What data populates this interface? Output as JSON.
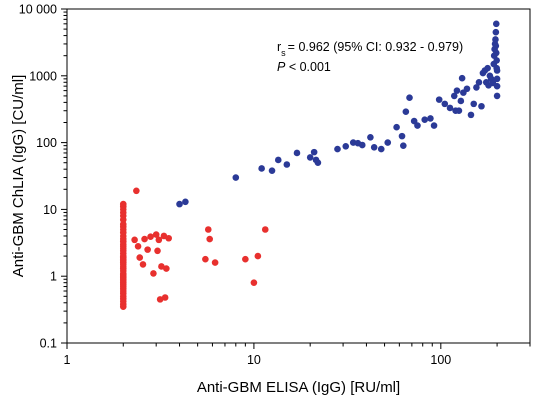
{
  "chart_data": {
    "type": "scatter",
    "title": "",
    "xlabel": "Anti-GBM ELISA (IgG) [RU/ml]",
    "ylabel": "Anti-GBM ChLIA (IgG) [CU/ml]",
    "xscale": "log",
    "yscale": "log",
    "xlim": [
      1,
      300
    ],
    "ylim": [
      0.1,
      10000
    ],
    "x_ticks": [
      1,
      10,
      100
    ],
    "x_tick_labels": [
      "1",
      "10",
      "100"
    ],
    "y_ticks": [
      0.1,
      1,
      10,
      100,
      1000,
      10000
    ],
    "y_tick_labels": [
      "0.1",
      "1",
      "10",
      "100",
      "1000",
      "10 000"
    ],
    "grid": false,
    "legend": "none",
    "annotation": {
      "stat_symbol": "r",
      "stat_subscript": "s",
      "stat_text": "= 0.962 (95% CI: 0.932 - 0.979)",
      "p_symbol": "P",
      "p_text": " < 0.001"
    },
    "series": [
      {
        "color": "#e8302e",
        "points": [
          [
            2,
            0.35
          ],
          [
            2,
            0.38
          ],
          [
            2,
            0.42
          ],
          [
            2,
            0.46
          ],
          [
            2,
            0.5
          ],
          [
            2,
            0.55
          ],
          [
            2,
            0.6
          ],
          [
            2,
            0.65
          ],
          [
            2,
            0.7
          ],
          [
            2,
            0.75
          ],
          [
            2,
            0.8
          ],
          [
            2,
            0.85
          ],
          [
            2,
            0.9
          ],
          [
            2,
            0.95
          ],
          [
            2,
            1.0
          ],
          [
            2,
            1.05
          ],
          [
            2,
            1.1
          ],
          [
            2,
            1.2
          ],
          [
            2,
            1.3
          ],
          [
            2,
            1.4
          ],
          [
            2,
            1.5
          ],
          [
            2,
            1.6
          ],
          [
            2,
            1.7
          ],
          [
            2,
            1.8
          ],
          [
            2,
            1.9
          ],
          [
            2,
            2.0
          ],
          [
            2,
            2.2
          ],
          [
            2,
            2.4
          ],
          [
            2,
            2.6
          ],
          [
            2,
            2.8
          ],
          [
            2,
            3.0
          ],
          [
            2,
            3.3
          ],
          [
            2,
            3.6
          ],
          [
            2,
            4.0
          ],
          [
            2,
            4.5
          ],
          [
            2,
            5.0
          ],
          [
            2,
            5.5
          ],
          [
            2,
            6.0
          ],
          [
            2,
            7.0
          ],
          [
            2,
            8.0
          ],
          [
            2,
            9.0
          ],
          [
            2,
            10.0
          ],
          [
            2,
            11.0
          ],
          [
            2,
            12.0
          ],
          [
            2.35,
            19
          ],
          [
            2.3,
            3.5
          ],
          [
            2.4,
            2.8
          ],
          [
            2.45,
            1.9
          ],
          [
            2.55,
            1.5
          ],
          [
            2.6,
            3.6
          ],
          [
            2.7,
            2.5
          ],
          [
            2.8,
            3.9
          ],
          [
            2.9,
            1.1
          ],
          [
            3.0,
            4.2
          ],
          [
            3.05,
            2.4
          ],
          [
            3.1,
            3.5
          ],
          [
            3.15,
            0.45
          ],
          [
            3.2,
            1.4
          ],
          [
            3.3,
            4.0
          ],
          [
            3.35,
            0.48
          ],
          [
            3.4,
            1.3
          ],
          [
            3.5,
            3.7
          ],
          [
            5.5,
            1.8
          ],
          [
            5.7,
            5.0
          ],
          [
            5.8,
            3.6
          ],
          [
            6.2,
            1.6
          ],
          [
            9.0,
            1.8
          ],
          [
            10.0,
            0.8
          ],
          [
            10.5,
            2.0
          ],
          [
            11.5,
            5.0
          ]
        ]
      },
      {
        "color": "#2b3a97",
        "points": [
          [
            4.0,
            12
          ],
          [
            4.3,
            13
          ],
          [
            8.0,
            30
          ],
          [
            11.0,
            41
          ],
          [
            12.5,
            38
          ],
          [
            13.5,
            55
          ],
          [
            15.0,
            47
          ],
          [
            17.0,
            70
          ],
          [
            20.0,
            60
          ],
          [
            21.0,
            72
          ],
          [
            21.5,
            55
          ],
          [
            22.0,
            50
          ],
          [
            28,
            80
          ],
          [
            31,
            88
          ],
          [
            34,
            100
          ],
          [
            36,
            98
          ],
          [
            38,
            92
          ],
          [
            42,
            120
          ],
          [
            44,
            85
          ],
          [
            48,
            80
          ],
          [
            52,
            100
          ],
          [
            58,
            170
          ],
          [
            62,
            125
          ],
          [
            63,
            90
          ],
          [
            65,
            290
          ],
          [
            68,
            470
          ],
          [
            72,
            210
          ],
          [
            75,
            180
          ],
          [
            82,
            220
          ],
          [
            88,
            230
          ],
          [
            92,
            180
          ],
          [
            98,
            440
          ],
          [
            105,
            380
          ],
          [
            112,
            330
          ],
          [
            118,
            500
          ],
          [
            120,
            300
          ],
          [
            122,
            600
          ],
          [
            125,
            300
          ],
          [
            128,
            420
          ],
          [
            130,
            920
          ],
          [
            132,
            560
          ],
          [
            138,
            640
          ],
          [
            145,
            260
          ],
          [
            150,
            380
          ],
          [
            155,
            670
          ],
          [
            160,
            800
          ],
          [
            165,
            350
          ],
          [
            168,
            1100
          ],
          [
            172,
            1200
          ],
          [
            175,
            800
          ],
          [
            178,
            1300
          ],
          [
            180,
            720
          ],
          [
            183,
            1000
          ],
          [
            186,
            900
          ],
          [
            190,
            780
          ],
          [
            192,
            1500
          ],
          [
            193,
            2000
          ],
          [
            194,
            2500
          ],
          [
            195,
            3000
          ],
          [
            196,
            3500
          ],
          [
            197,
            4500
          ],
          [
            198,
            6000
          ],
          [
            199,
            1700
          ],
          [
            200,
            1200
          ],
          [
            200,
            900
          ],
          [
            200,
            700
          ],
          [
            200,
            500
          ],
          [
            199,
            1300
          ],
          [
            198,
            2200
          ],
          [
            197,
            2800
          ]
        ]
      }
    ]
  }
}
